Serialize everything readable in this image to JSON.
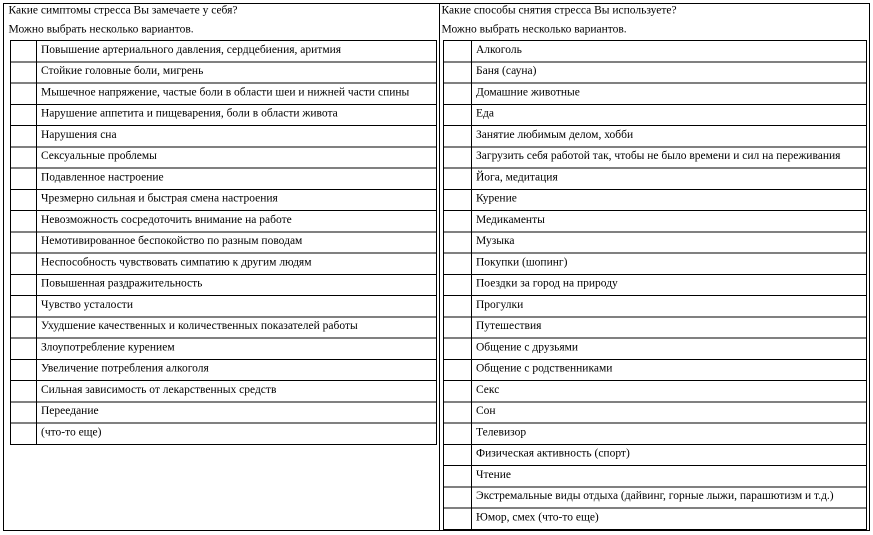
{
  "columns": [
    {
      "question": "Какие симптомы стресса Вы замечаете у себя?",
      "note": "Можно выбрать несколько вариантов.",
      "items": [
        "Повышение артериального давления, сердцебиения, аритмия",
        "Стойкие головные боли, мигрень",
        "Мышечное напряжение, частые боли в области шеи и нижней части спины",
        "Нарушение аппетита и пищеварения, боли в области живота",
        "Нарушения сна",
        "Сексуальные проблемы",
        "Подавленное настроение",
        "Чрезмерно сильная и быстрая смена настроения",
        "Невозможность сосредоточить внимание на работе",
        "Немотивированное беспокойство по разным поводам",
        "Неспособность чувствовать симпатию к другим людям",
        "Повышенная раздражительность",
        "Чувство усталости",
        "Ухудшение качественных и количественных показателей работы",
        "Злоупотребление курением",
        "Увеличение потребления алкоголя",
        "Сильная зависимость от лекарственных средств",
        "Переедание",
        "(что-то еще)"
      ]
    },
    {
      "question": "Какие способы снятия стресса Вы используете?",
      "note": "Можно выбрать несколько вариантов.",
      "items": [
        "Алкоголь",
        "Баня (сауна)",
        "Домашние животные",
        "Еда",
        "Занятие любимым делом, хобби",
        "Загрузить себя работой так, чтобы не было времени и сил на переживания",
        "Йога, медитация",
        "Курение",
        "Медикаменты",
        "Музыка",
        "Покупки (шопинг)",
        "Поездки за город на природу",
        "Прогулки",
        "Путешествия",
        "Общение с друзьями",
        "Общение с родственниками",
        "Секс",
        "Сон",
        "Телевизор",
        "Физическая активность (спорт)",
        "Чтение",
        "Экстремальные виды отдыха (дайвинг, горные лыжи, парашютизм и т.д.)",
        "Юмор, смех (что-то еще)"
      ]
    }
  ]
}
